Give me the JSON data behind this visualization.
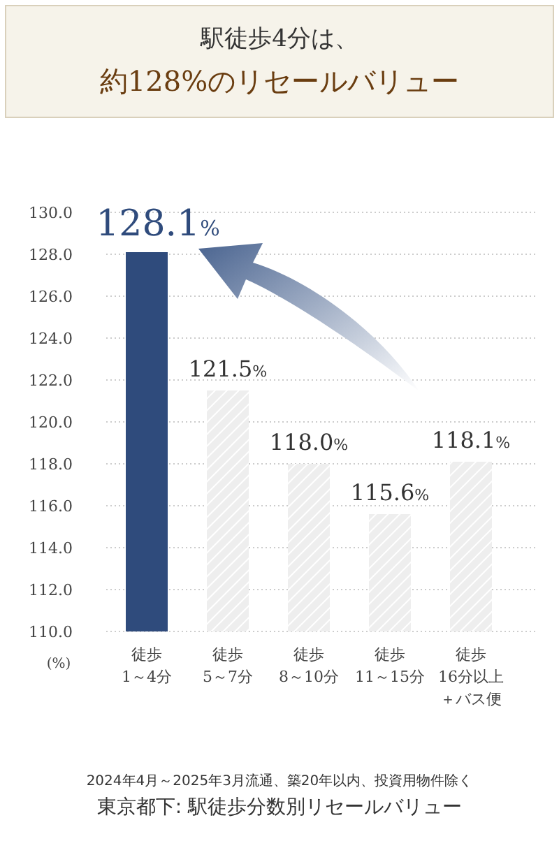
{
  "chart_data": {
    "type": "bar",
    "title": "駅徒歩4分は、",
    "subtitle": "約128%のリセールバリュー",
    "ylabel": "(%)",
    "categories": [
      "徒歩1～4分",
      "徒歩5～7分",
      "徒歩8～10分",
      "徒歩11～15分",
      "徒歩16分以上＋バス便"
    ],
    "values": [
      128.1,
      121.5,
      118.0,
      115.6,
      118.1
    ],
    "colors": [
      "#2f4b7c",
      "#eeeeee",
      "#eeeeee",
      "#eeeeee",
      "#eeeeee"
    ],
    "value_labels": [
      "128.1%",
      "121.5%",
      "118.0%",
      "115.6%",
      "118.1%"
    ],
    "ylim": [
      110,
      130
    ],
    "yticks": [
      {
        "value": 110,
        "label": "110.0"
      },
      {
        "value": 112,
        "label": "112.0"
      },
      {
        "value": 114,
        "label": "114.0"
      },
      {
        "value": 116,
        "label": "116.0"
      },
      {
        "value": 118,
        "label": "118.0"
      },
      {
        "value": 120,
        "label": "120.0"
      },
      {
        "value": 122,
        "label": "122.0"
      },
      {
        "value": 124,
        "label": "124.0"
      },
      {
        "value": 126,
        "label": "126.0"
      },
      {
        "value": 128,
        "label": "128.0"
      },
      {
        "value": 130,
        "label": "130.0"
      }
    ],
    "grid": "y",
    "annotations": [
      "2024年4月～2025年3月流通、築20年以内、投資用物件除く",
      "東京都下: 駅徒歩分数別リセールバリュー"
    ]
  }
}
